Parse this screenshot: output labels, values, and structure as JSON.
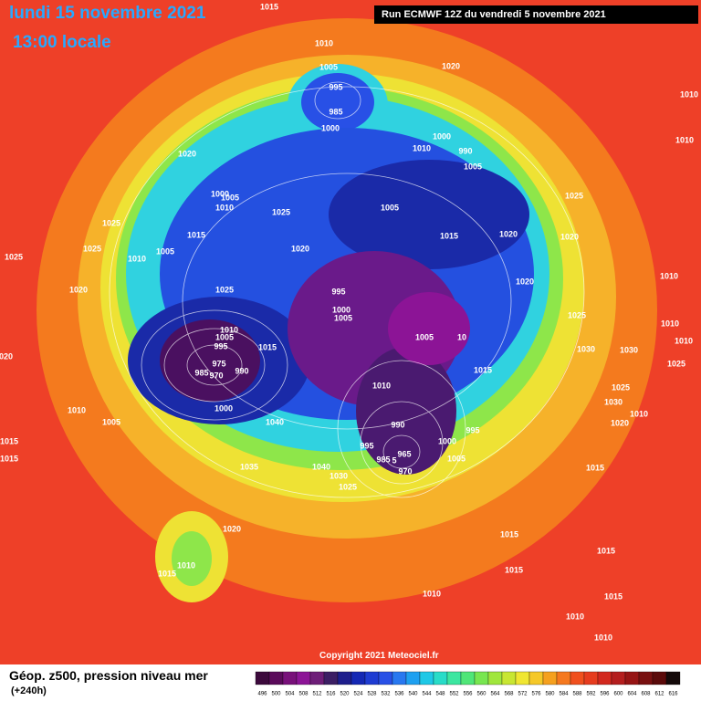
{
  "header": {
    "date": "lundi 15 novembre 2021",
    "time": "13:00 locale",
    "run": "Run ECMWF 12Z du vendredi 5 novembre 2021"
  },
  "map": {
    "isobar_labels": [
      "1015",
      "1010",
      "1005",
      "995",
      "985",
      "1000",
      "1020",
      "1010",
      "1000",
      "990",
      "1005",
      "1020",
      "1000",
      "1005",
      "1010",
      "1025",
      "1005",
      "1015",
      "1020",
      "1020",
      "1025",
      "1015",
      "1025",
      "1025",
      "1005",
      "1010",
      "1020",
      "1025",
      "1020",
      "1025",
      "995",
      "1000",
      "1005",
      "1020",
      "1025",
      "1010",
      "1010",
      "1030",
      "1030",
      "1005",
      "10",
      "1010",
      "1005",
      "995",
      "1015",
      "975",
      "990",
      "985",
      "970",
      "1015",
      "1010",
      "1000",
      "1010",
      "1005",
      "1040",
      "990",
      "995",
      "1000",
      "995",
      "965",
      "985",
      "5",
      "1005",
      "970",
      "1015",
      "1015",
      "1035",
      "1040",
      "1030",
      "1025",
      "1020",
      "1015",
      "1015",
      "1010",
      "1015",
      "1015",
      "1010",
      "1015",
      "1010",
      "1010",
      "1025",
      "1030",
      "1020",
      "1010",
      "1015",
      "1010",
      "1010",
      "1025",
      "1010",
      "1020"
    ]
  },
  "footer": {
    "field": "Géop. z500, pression niveau mer",
    "lead": "(+240h)",
    "copyright": "Copyright 2021 Meteociel.fr"
  },
  "legend": {
    "labels": [
      "496",
      "500",
      "504",
      "508",
      "512",
      "516",
      "520",
      "524",
      "528",
      "532",
      "536",
      "540",
      "544",
      "548",
      "552",
      "556",
      "560",
      "564",
      "568",
      "572",
      "576",
      "580",
      "584",
      "588",
      "592",
      "596",
      "600",
      "604",
      "608",
      "612",
      "616"
    ],
    "colors": [
      "#3c0a3c",
      "#5a0a5a",
      "#78107a",
      "#8c1496",
      "#6e1e78",
      "#3c1e64",
      "#1e1e8c",
      "#1428b4",
      "#1e3cd2",
      "#2850e6",
      "#2878f0",
      "#1ea0f0",
      "#1ec8e6",
      "#28dcc8",
      "#3ce6a0",
      "#50e678",
      "#78e650",
      "#a0e63c",
      "#c8e632",
      "#f0e632",
      "#f5c828",
      "#f5a01e",
      "#f5781e",
      "#f0501e",
      "#e63c1e",
      "#d2281e",
      "#b41e1e",
      "#961414",
      "#781010",
      "#5a0a0a",
      "#140a0a"
    ]
  }
}
